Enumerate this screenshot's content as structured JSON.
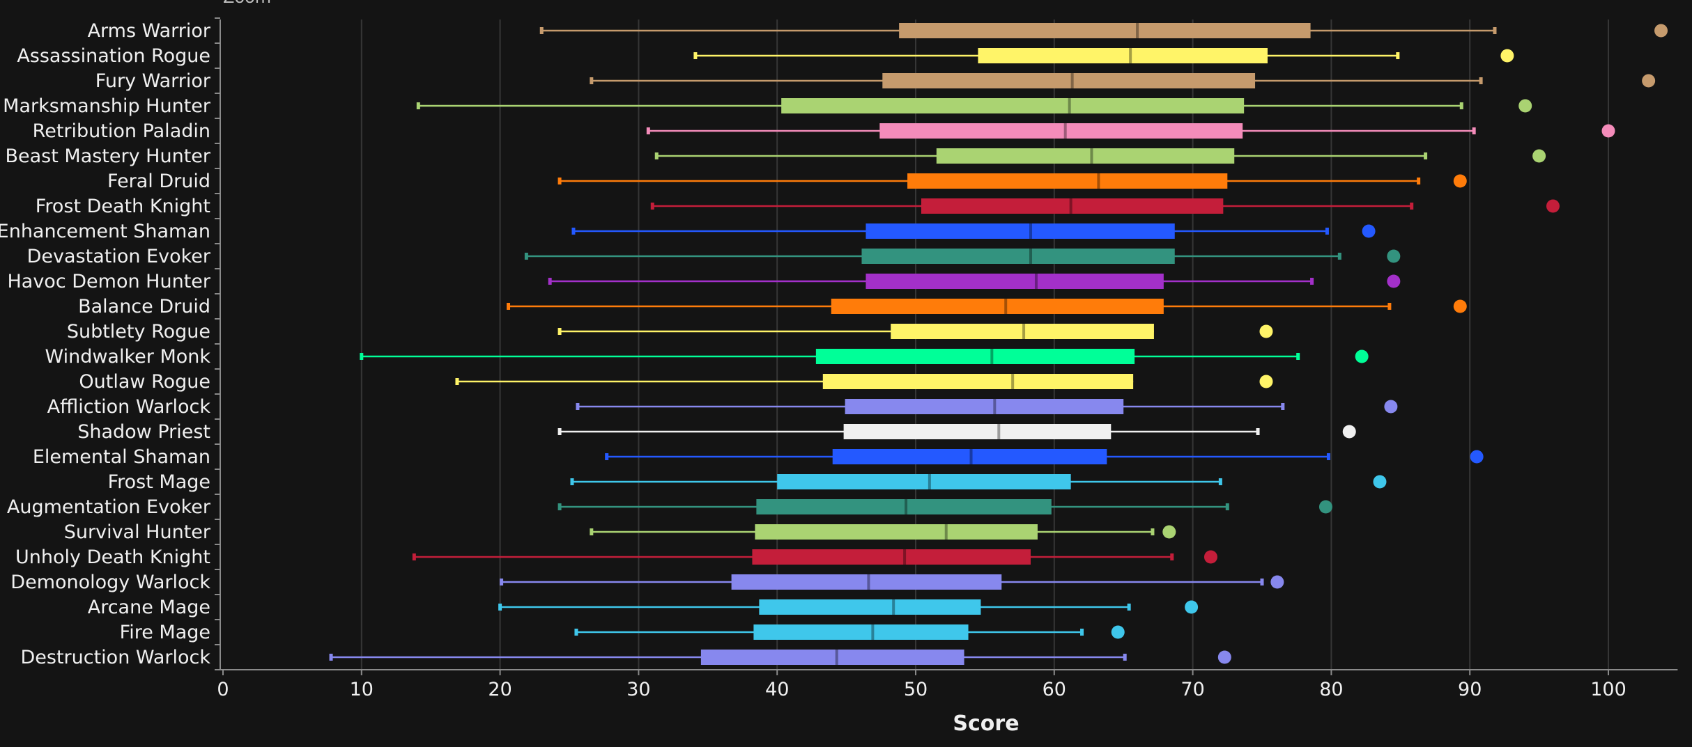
{
  "chart_data": {
    "type": "boxplot",
    "xlabel": "Score",
    "top_text": "Zoom",
    "xlim": [
      0,
      105
    ],
    "x_ticks": [
      0,
      10,
      20,
      30,
      40,
      50,
      60,
      70,
      80,
      90,
      100
    ],
    "grid": "vertical",
    "legend": "none",
    "series": [
      {
        "name": "Arms Warrior",
        "color": "#c69b6d",
        "min": 23.0,
        "q1": 48.8,
        "median": 66.0,
        "q3": 78.5,
        "max": 91.8,
        "outlier": 103.8
      },
      {
        "name": "Assassination Rogue",
        "color": "#fff468",
        "min": 34.1,
        "q1": 54.5,
        "median": 65.5,
        "q3": 75.4,
        "max": 84.8,
        "outlier": 92.7
      },
      {
        "name": "Fury Warrior",
        "color": "#c69b6d",
        "min": 26.6,
        "q1": 47.6,
        "median": 61.3,
        "q3": 74.5,
        "max": 90.8,
        "outlier": 102.9
      },
      {
        "name": "Marksmanship Hunter",
        "color": "#aad372",
        "min": 14.1,
        "q1": 40.3,
        "median": 61.1,
        "q3": 73.7,
        "max": 89.4,
        "outlier": 94.0
      },
      {
        "name": "Retribution Paladin",
        "color": "#f48cba",
        "min": 30.7,
        "q1": 47.4,
        "median": 60.8,
        "q3": 73.6,
        "max": 90.3,
        "outlier": 100.0
      },
      {
        "name": "Beast Mastery Hunter",
        "color": "#aad372",
        "min": 31.3,
        "q1": 51.5,
        "median": 62.7,
        "q3": 73.0,
        "max": 86.8,
        "outlier": 95.0
      },
      {
        "name": "Feral Druid",
        "color": "#ff7c0a",
        "min": 24.3,
        "q1": 49.4,
        "median": 63.2,
        "q3": 72.5,
        "max": 86.3,
        "outlier": 89.3
      },
      {
        "name": "Frost Death Knight",
        "color": "#c41e3a",
        "min": 31.0,
        "q1": 50.4,
        "median": 61.2,
        "q3": 72.2,
        "max": 85.8,
        "outlier": 96.0
      },
      {
        "name": "Enhancement Shaman",
        "color": "#2459ff",
        "min": 25.3,
        "q1": 46.4,
        "median": 58.3,
        "q3": 68.7,
        "max": 79.7,
        "outlier": 82.7
      },
      {
        "name": "Devastation Evoker",
        "color": "#33937f",
        "min": 21.9,
        "q1": 46.1,
        "median": 58.3,
        "q3": 68.7,
        "max": 80.6,
        "outlier": 84.5
      },
      {
        "name": "Havoc Demon Hunter",
        "color": "#a330c9",
        "min": 23.6,
        "q1": 46.4,
        "median": 58.7,
        "q3": 67.9,
        "max": 78.6,
        "outlier": 84.5
      },
      {
        "name": "Balance Druid",
        "color": "#ff7c0a",
        "min": 20.6,
        "q1": 43.9,
        "median": 56.5,
        "q3": 67.9,
        "max": 84.2,
        "outlier": 89.3
      },
      {
        "name": "Subtlety Rogue",
        "color": "#fff468",
        "min": 24.3,
        "q1": 48.2,
        "median": 57.8,
        "q3": 67.2,
        "max": null,
        "outlier": 75.3
      },
      {
        "name": "Windwalker Monk",
        "color": "#00ff98",
        "min": 10.0,
        "q1": 42.8,
        "median": 55.5,
        "q3": 65.8,
        "max": 77.6,
        "outlier": 82.2
      },
      {
        "name": "Outlaw Rogue",
        "color": "#fff468",
        "min": 16.9,
        "q1": 43.3,
        "median": 57.0,
        "q3": 65.7,
        "max": null,
        "outlier": 75.3
      },
      {
        "name": "Affliction Warlock",
        "color": "#8788ee",
        "min": 25.6,
        "q1": 44.9,
        "median": 55.7,
        "q3": 65.0,
        "max": 76.5,
        "outlier": 84.3
      },
      {
        "name": "Shadow Priest",
        "color": "#f0f0f0",
        "min": 24.3,
        "q1": 44.8,
        "median": 56.0,
        "q3": 64.1,
        "max": 74.7,
        "outlier": 81.3
      },
      {
        "name": "Elemental Shaman",
        "color": "#2459ff",
        "min": 27.7,
        "q1": 44.0,
        "median": 54.0,
        "q3": 63.8,
        "max": 79.8,
        "outlier": 90.5
      },
      {
        "name": "Frost Mage",
        "color": "#3fc7eb",
        "min": 25.2,
        "q1": 40.0,
        "median": 51.0,
        "q3": 61.2,
        "max": 72.0,
        "outlier": 83.5
      },
      {
        "name": "Augmentation Evoker",
        "color": "#33937f",
        "min": 24.3,
        "q1": 38.5,
        "median": 49.3,
        "q3": 59.8,
        "max": 72.5,
        "outlier": 79.6
      },
      {
        "name": "Survival Hunter",
        "color": "#aad372",
        "min": 26.6,
        "q1": 38.4,
        "median": 52.2,
        "q3": 58.8,
        "max": 67.1,
        "outlier": 68.3
      },
      {
        "name": "Unholy Death Knight",
        "color": "#c41e3a",
        "min": 13.8,
        "q1": 38.2,
        "median": 49.2,
        "q3": 58.3,
        "max": 68.5,
        "outlier": 71.3
      },
      {
        "name": "Demonology Warlock",
        "color": "#8788ee",
        "min": 20.1,
        "q1": 36.7,
        "median": 46.6,
        "q3": 56.2,
        "max": 75.0,
        "outlier": 76.1
      },
      {
        "name": "Arcane Mage",
        "color": "#3fc7eb",
        "min": 20.0,
        "q1": 38.7,
        "median": 48.4,
        "q3": 54.7,
        "max": 65.4,
        "outlier": 69.9
      },
      {
        "name": "Fire Mage",
        "color": "#3fc7eb",
        "min": 25.5,
        "q1": 38.3,
        "median": 46.9,
        "q3": 53.8,
        "max": 62.0,
        "outlier": 64.6
      },
      {
        "name": "Destruction Warlock",
        "color": "#8788ee",
        "min": 7.8,
        "q1": 34.5,
        "median": 44.3,
        "q3": 53.5,
        "max": 65.1,
        "outlier": 72.3
      }
    ]
  }
}
